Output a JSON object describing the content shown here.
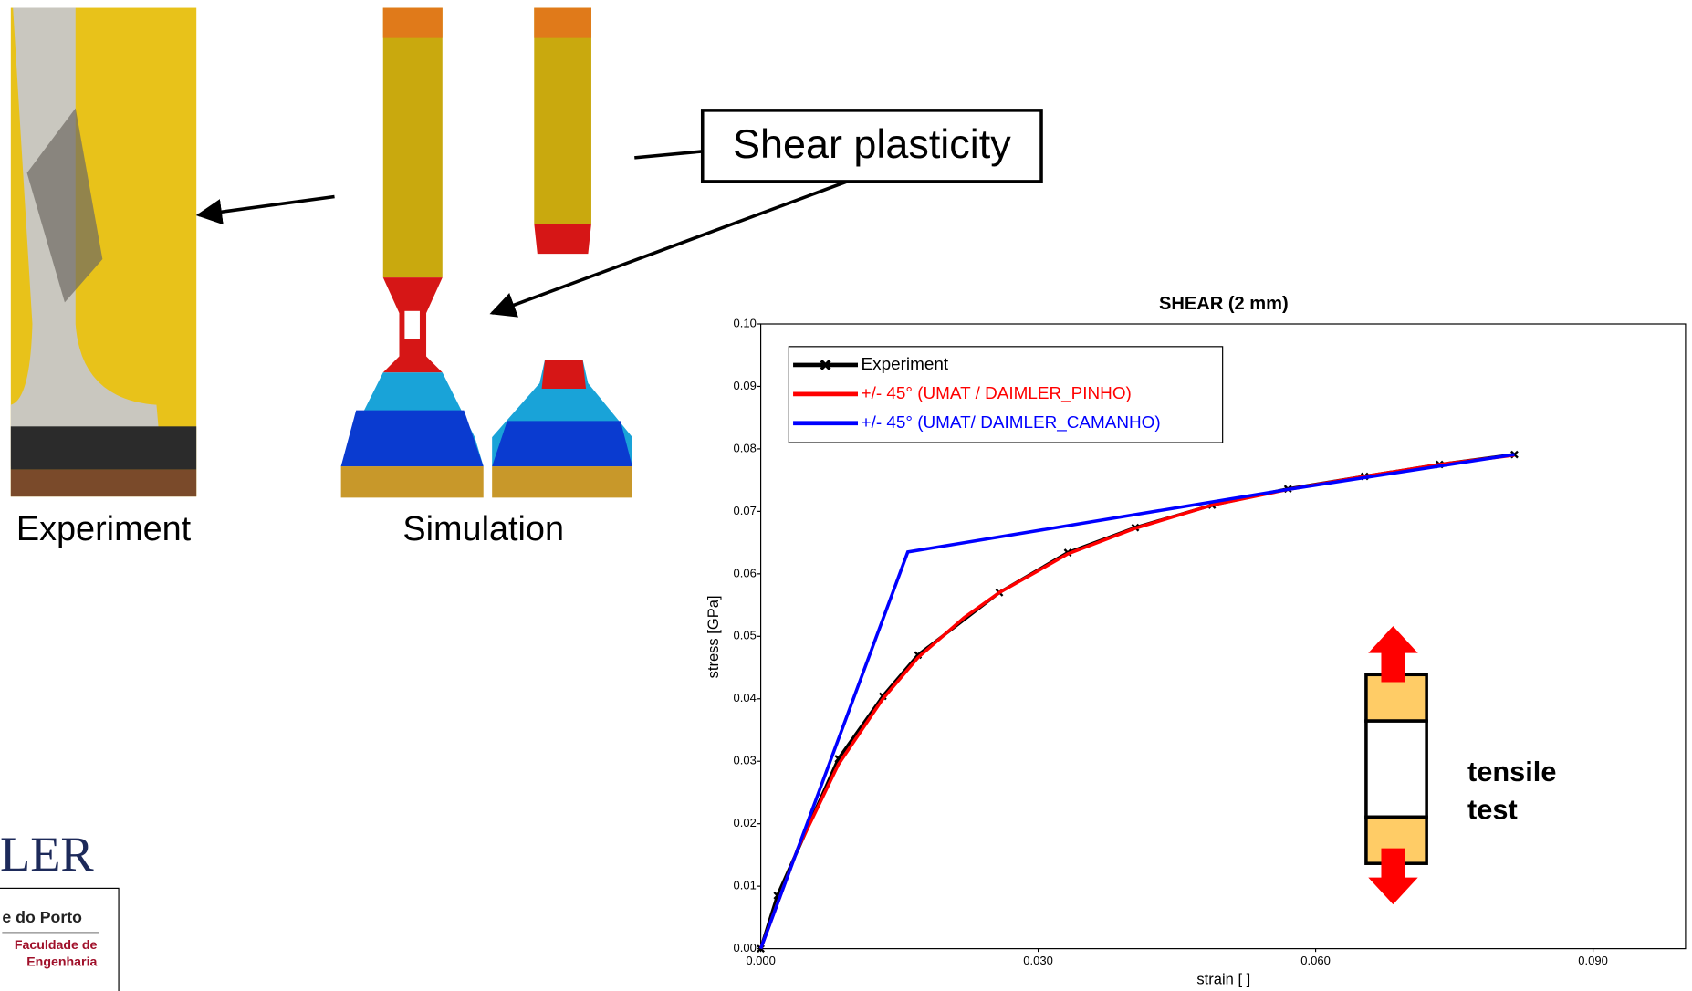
{
  "slide": {
    "photo_caption": "Experiment",
    "simulation_caption": "Simulation",
    "callout": "Shear plasticity",
    "icon_label": [
      "tensile",
      "test"
    ],
    "logo": [
      "LER",
      "e do Porto",
      "Faculdade de",
      "Engenharia"
    ]
  },
  "chart_data": {
    "type": "line",
    "title": "SHEAR (2 mm)",
    "x_label": "strain [ ]",
    "y_label": "stress [GPa]",
    "xlim": [
      0,
      0.1
    ],
    "ylim": [
      0,
      0.1
    ],
    "xticks": [
      {
        "value": 0,
        "label": "0.000"
      },
      {
        "value": 0.03,
        "label": "0.030"
      },
      {
        "value": 0.06,
        "label": "0.060"
      },
      {
        "value": 0.09,
        "label": "0.090"
      }
    ],
    "yticks": [
      {
        "value": 0,
        "label": "0.00"
      },
      0.01,
      0.02,
      0.03,
      0.04,
      0.05,
      0.06,
      0.07,
      0.08,
      0.09,
      {
        "value": 0.1,
        "label": "0.10"
      }
    ],
    "grid": false,
    "legend": "upper left",
    "series": [
      {
        "name": "Experiment",
        "color": "#000000",
        "marker": "x",
        "x": [
          0,
          0.0018,
          0.0084,
          0.0132,
          0.017,
          0.0258,
          0.0332,
          0.0405,
          0.0488,
          0.057,
          0.0653,
          0.0734,
          0.0815
        ],
        "values": [
          0,
          0.0085,
          0.0304,
          0.0404,
          0.047,
          0.057,
          0.0634,
          0.0674,
          0.071,
          0.0736,
          0.0756,
          0.0775,
          0.0791
        ]
      },
      {
        "name": "+/- 45° (UMAT / DAIMLER_PINHO)",
        "color": "#ff0000",
        "x": [
          0,
          0.004,
          0.0084,
          0.0132,
          0.017,
          0.022,
          0.0258,
          0.03,
          0.0332,
          0.0405,
          0.0488,
          0.057,
          0.0653,
          0.0734,
          0.0815
        ],
        "values": [
          0,
          0.016,
          0.0295,
          0.04,
          0.0466,
          0.053,
          0.057,
          0.0605,
          0.0632,
          0.0673,
          0.071,
          0.0735,
          0.0756,
          0.0775,
          0.079
        ]
      },
      {
        "name": "+/- 45° (UMAT/ DAIMLER_CAMANHO)",
        "color": "#0000ff",
        "x": [
          0,
          0.0159,
          0.057,
          0.0815
        ],
        "values": [
          0,
          0.0635,
          0.0735,
          0.0791
        ]
      }
    ]
  }
}
